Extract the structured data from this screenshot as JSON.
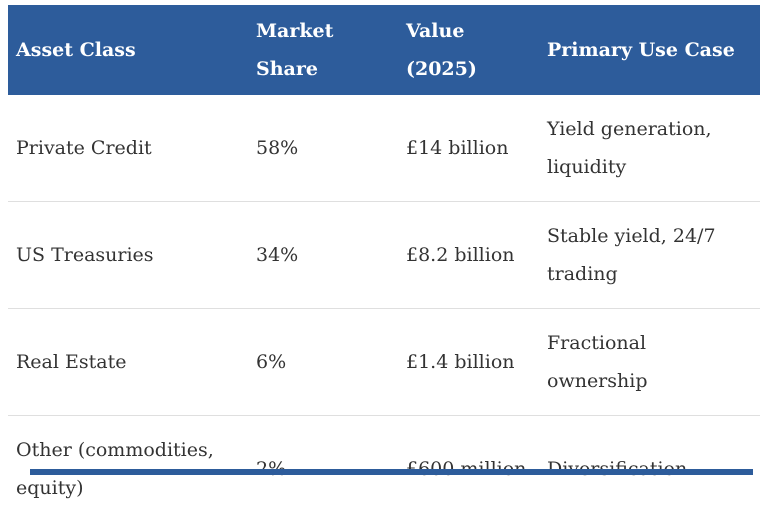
{
  "chart_data": {
    "type": "table",
    "title": "",
    "columns": [
      "Asset Class",
      "Market Share",
      "Value (2025)",
      "Primary Use Case"
    ],
    "rows": [
      [
        "Private Credit",
        "58%",
        "£14 billion",
        "Yield generation, liquidity"
      ],
      [
        "US Treasuries",
        "34%",
        "£8.2 billion",
        "Stable yield, 24/7 trading"
      ],
      [
        "Real Estate",
        "6%",
        "£1.4 billion",
        "Fractional ownership"
      ],
      [
        "Other (commodities, equity)",
        "2%",
        "£600 million",
        "Diversification"
      ]
    ],
    "market_share_percent": [
      58,
      34,
      6,
      2
    ],
    "value_2025_billion_gbp": [
      14,
      8.2,
      1.4,
      0.6
    ]
  },
  "table": {
    "columns": [
      {
        "label": "Asset Class"
      },
      {
        "label": "Market Share"
      },
      {
        "label": "Value (2025)"
      },
      {
        "label": "Primary Use Case"
      }
    ],
    "rows": [
      {
        "asset_class": "Private Credit",
        "market_share": "58%",
        "value": "£14 billion",
        "use_case": "Yield generation, liquidity"
      },
      {
        "asset_class": "US Treasuries",
        "market_share": "34%",
        "value": "£8.2 billion",
        "use_case": "Stable yield, 24/7 trading"
      },
      {
        "asset_class": "Real Estate",
        "market_share": "6%",
        "value": "£1.4 billion",
        "use_case": "Fractional ownership"
      },
      {
        "asset_class": "Other (commodities, equity)",
        "market_share": "2%",
        "value": "£600 million",
        "use_case": "Diversification"
      }
    ]
  },
  "colors": {
    "header_bg": "#2d5c9b",
    "header_text": "#ffffff",
    "body_text": "#333333",
    "divider": "#dfdfdf",
    "scrollbar_thumb": "#2d5c9b"
  }
}
